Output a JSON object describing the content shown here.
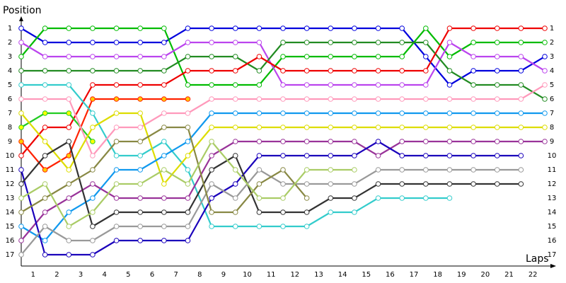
{
  "chart_data": {
    "type": "line",
    "y_label": "Position",
    "x_label": "Laps",
    "categories": [
      null,
      "1",
      "2",
      "3",
      "4",
      "5",
      "6",
      "7",
      "8",
      "9",
      "10",
      "11",
      "12",
      "13",
      "14",
      "15",
      "16",
      "17",
      "18",
      "19",
      "20",
      "21",
      "22"
    ],
    "ylim": [
      17.75,
      0.25
    ],
    "yticks": [
      1,
      2,
      3,
      4,
      5,
      6,
      7,
      8,
      9,
      10,
      11,
      12,
      13,
      14,
      15,
      16,
      17
    ],
    "y2ticks": [
      1,
      2,
      3,
      4,
      5,
      6,
      7,
      8,
      9,
      10,
      11,
      12,
      13,
      14,
      15,
      16,
      17
    ],
    "series": [
      {
        "color": "#0000dd",
        "values": [
          1,
          2,
          2,
          2,
          2,
          2,
          2,
          1,
          1,
          1,
          1,
          1,
          1,
          1,
          1,
          1,
          1,
          3,
          5,
          4,
          4,
          4,
          3
        ]
      },
      {
        "color": "#00bb00",
        "values": [
          3,
          1,
          1,
          1,
          1,
          1,
          1,
          5,
          5,
          5,
          5,
          3,
          3,
          3,
          3,
          3,
          3,
          1,
          3,
          2,
          2,
          2,
          2
        ]
      },
      {
        "color": "#bb44ee",
        "values": [
          2,
          3,
          3,
          3,
          3,
          3,
          3,
          2,
          2,
          2,
          2,
          5,
          5,
          5,
          5,
          5,
          5,
          5,
          2,
          3,
          3,
          3,
          4
        ]
      },
      {
        "color": "#228b22",
        "values": [
          4,
          4,
          4,
          4,
          4,
          4,
          4,
          3,
          3,
          3,
          4,
          2,
          2,
          2,
          2,
          2,
          2,
          2,
          4,
          5,
          5,
          5,
          6
        ]
      },
      {
        "color": "#ee0000",
        "values": [
          10,
          8,
          8,
          5,
          5,
          5,
          5,
          4,
          4,
          4,
          3,
          4,
          4,
          4,
          4,
          4,
          4,
          4,
          1,
          1,
          1,
          1,
          1
        ]
      },
      {
        "color": "#ff2200",
        "marker_fill": "#ffcc00",
        "values": [
          9,
          11,
          10,
          6,
          6,
          6,
          6,
          6,
          null,
          null,
          null,
          null,
          null,
          null,
          null,
          null,
          null,
          null,
          null,
          null,
          null,
          null,
          null
        ]
      },
      {
        "color": "#22cc22",
        "marker_fill": "#ffff00",
        "values": [
          8,
          7,
          7,
          9,
          null,
          null,
          null,
          null,
          null,
          null,
          null,
          null,
          null,
          null,
          null,
          null,
          null,
          null,
          null,
          null,
          null,
          null,
          null
        ]
      },
      {
        "color": "#33cccc",
        "values": [
          5,
          5,
          5,
          7,
          10,
          10,
          9,
          11,
          15,
          15,
          15,
          15,
          15,
          14,
          14,
          13,
          13,
          13,
          13,
          null,
          null,
          null,
          null
        ]
      },
      {
        "color": "#ff99bb",
        "values": [
          6,
          6,
          6,
          10,
          8,
          8,
          7,
          7,
          6,
          6,
          6,
          6,
          6,
          6,
          6,
          6,
          6,
          6,
          6,
          6,
          6,
          6,
          5
        ]
      },
      {
        "color": "#dddd00",
        "values": [
          7,
          9,
          11,
          8,
          7,
          7,
          12,
          10,
          8,
          8,
          8,
          8,
          8,
          8,
          8,
          8,
          8,
          8,
          8,
          8,
          8,
          8,
          8
        ]
      },
      {
        "color": "#1199ee",
        "values": [
          15,
          16,
          14,
          13,
          11,
          11,
          10,
          9,
          7,
          7,
          7,
          7,
          7,
          7,
          7,
          7,
          7,
          7,
          7,
          7,
          7,
          7,
          7
        ]
      },
      {
        "color": "#993399",
        "values": [
          16,
          14,
          13,
          12,
          13,
          13,
          13,
          13,
          10,
          9,
          9,
          9,
          9,
          9,
          9,
          10,
          9,
          9,
          9,
          9,
          9,
          9,
          9
        ]
      },
      {
        "color": "#1a00bb",
        "values": [
          11,
          17,
          17,
          17,
          16,
          16,
          16,
          16,
          13,
          12,
          10,
          10,
          10,
          10,
          10,
          9,
          10,
          10,
          10,
          10,
          10,
          10,
          null
        ]
      },
      {
        "color": "#333333",
        "values": [
          12,
          10,
          9,
          15,
          14,
          14,
          14,
          14,
          11,
          10,
          14,
          14,
          14,
          13,
          13,
          12,
          12,
          12,
          12,
          12,
          12,
          12,
          null
        ]
      },
      {
        "color": "#999999",
        "values": [
          17,
          15,
          16,
          16,
          15,
          15,
          15,
          15,
          12,
          13,
          11,
          12,
          12,
          12,
          12,
          11,
          11,
          11,
          11,
          11,
          11,
          11,
          null
        ]
      },
      {
        "color": "#888844",
        "values": [
          14,
          13,
          12,
          11,
          9,
          9,
          8,
          8,
          14,
          14,
          12,
          11,
          13,
          null,
          null,
          null,
          null,
          null,
          null,
          null,
          null,
          null,
          null
        ]
      },
      {
        "color": "#aacc66",
        "values": [
          13,
          12,
          15,
          14,
          12,
          12,
          11,
          12,
          9,
          11,
          13,
          13,
          11,
          11,
          11,
          null,
          null,
          null,
          null,
          null,
          null,
          null,
          null
        ]
      }
    ]
  }
}
